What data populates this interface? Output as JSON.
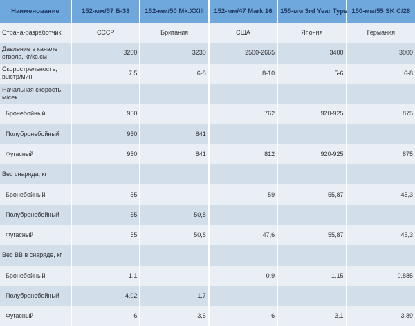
{
  "header": [
    "Наименование",
    "152-мм/57 Б-38",
    "152-мм/50 Mk.XXIII",
    "152-мм/47 Mark 16",
    "155-мм 3rd Year Type",
    "150-мм/55 SK C/28"
  ],
  "rows": [
    {
      "label": "Страна-разработчик",
      "values": [
        "СССР",
        "Британия",
        "США",
        "Япония",
        "Германия"
      ]
    },
    {
      "label": "Давление в канале ствола, кг/кв.см",
      "values": [
        "3200",
        "3230",
        "2500-2665",
        "3400",
        "3000"
      ]
    },
    {
      "label": "Скорострельность, выстр/мин",
      "values": [
        "7,5",
        "6-8",
        "8-10",
        "5-6",
        "6-8"
      ]
    },
    {
      "label": "Начальная скорость, м/сек",
      "values": [
        "",
        "",
        "",
        "",
        ""
      ]
    },
    {
      "label": "Бронебойный",
      "values": [
        "950",
        "",
        "762",
        "920-925",
        "875"
      ]
    },
    {
      "label": "Полубронебойный",
      "values": [
        "950",
        "841",
        "",
        "",
        ""
      ]
    },
    {
      "label": "Фугасный",
      "values": [
        "950",
        "841",
        "812",
        "920-925",
        "875"
      ]
    },
    {
      "label": "Вес снаряда, кг",
      "values": [
        "",
        "",
        "",
        "",
        ""
      ]
    },
    {
      "label": "Бронебойный",
      "values": [
        "55",
        "",
        "59",
        "55,87",
        "45,3"
      ]
    },
    {
      "label": "Полубронебойный",
      "values": [
        "55",
        "50,8",
        "",
        "",
        ""
      ]
    },
    {
      "label": "Фугасный",
      "values": [
        "55",
        "50,8",
        "47,6",
        "55,87",
        "45,3"
      ]
    },
    {
      "label": "Вес ВВ в снаряде, кг",
      "values": [
        "",
        "",
        "",
        "",
        ""
      ]
    },
    {
      "label": "Бронебойный",
      "values": [
        "1,1",
        "",
        "0,9",
        "1,15",
        "0,885"
      ]
    },
    {
      "label": "Полубронебойный",
      "values": [
        "4,02",
        "1,7",
        "",
        "",
        ""
      ]
    },
    {
      "label": "Фугасный",
      "values": [
        "6",
        "3,6",
        "6",
        "3,1",
        "3,89"
      ]
    }
  ],
  "colors": {
    "header_bg": "#6fa8dc",
    "header_text": "#1f3864",
    "row_dark": "#d3deeb",
    "row_light": "#eaeff6"
  }
}
